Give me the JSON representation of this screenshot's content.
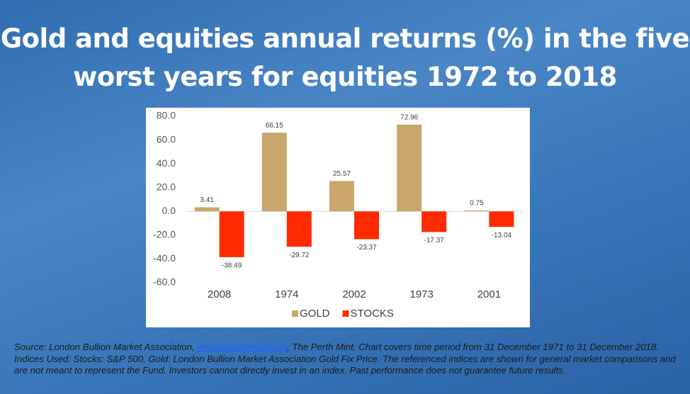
{
  "title": "Gold and equities annual returns (%) in the five worst years for equities 1972 to 2018",
  "chart_data": {
    "type": "bar",
    "categories": [
      "2008",
      "1974",
      "2002",
      "1973",
      "2001"
    ],
    "series": [
      {
        "name": "GOLD",
        "color": "#c9a66b",
        "values": [
          3.41,
          66.15,
          25.57,
          72.96,
          0.75
        ]
      },
      {
        "name": "STOCKS",
        "color": "#ff2a00",
        "values": [
          -38.49,
          -29.72,
          -23.37,
          -17.37,
          -13.04
        ]
      }
    ],
    "ylim": [
      -60,
      80
    ],
    "yticks": [
      {
        "value": 80,
        "label": "80.0"
      },
      {
        "value": 60,
        "label": "60.0"
      },
      {
        "value": 40,
        "label": "40.0"
      },
      {
        "value": 20,
        "label": "20.0"
      },
      {
        "value": 0,
        "label": "0.0"
      },
      {
        "value": -20,
        "label": "-20.0"
      },
      {
        "value": -40,
        "label": "-40.0"
      },
      {
        "value": -60,
        "label": "-60.0"
      }
    ],
    "legend": "bottom"
  },
  "footer": {
    "before": "Source: London Bullion Market Association, ",
    "link": "www.macrotrends.net",
    "after": ", The Perth Mint. Chart covers time period from 31 December 1971 to 31 December 2018. Indices Used: Stocks: S&P 500, Gold: London Bullion Market Association Gold Fix Price. The referenced indices are shown for general market comparisons and are not meant to represent the Fund.  Investors cannot directly invest in an index. Past performance does not guarantee future results."
  }
}
